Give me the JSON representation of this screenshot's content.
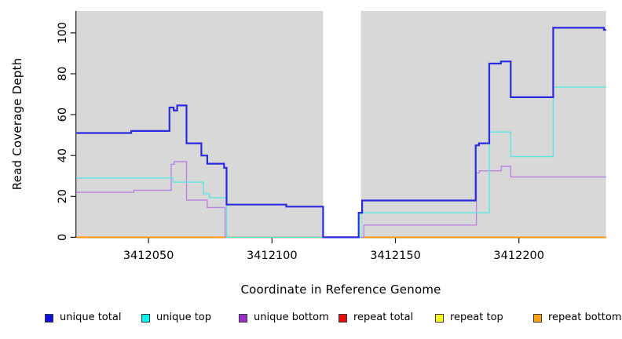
{
  "figure": {
    "xlabel": "Coordinate in Reference Genome",
    "ylabel": "Read Coverage Depth"
  },
  "chart_data": {
    "type": "line",
    "subtype": "step",
    "title": "",
    "xlabel": "Coordinate in Reference Genome",
    "ylabel": "Read Coverage Depth",
    "xlim": [
      3412020.8,
      3412235.3
    ],
    "ylim": [
      0,
      110.7
    ],
    "grid": false,
    "plot_bg": "#D8D8D8",
    "axis_color": "#1a1a1a",
    "legend_position": "bottom",
    "x_ticks": [
      {
        "value": 3412050,
        "label": "3412050"
      },
      {
        "value": 3412100,
        "label": "3412100"
      },
      {
        "value": 3412150,
        "label": "3412150"
      },
      {
        "value": 3412200,
        "label": "3412200"
      }
    ],
    "y_ticks": [
      {
        "value": 0,
        "label": "0"
      },
      {
        "value": 20,
        "label": "20"
      },
      {
        "value": 40,
        "label": "40"
      },
      {
        "value": 60,
        "label": "60"
      },
      {
        "value": 80,
        "label": "80"
      },
      {
        "value": 100,
        "label": "100"
      }
    ],
    "masked_region": {
      "x_start": 3412120.7,
      "x_end": 3412136.0,
      "color": "#FFFFFF"
    },
    "series": [
      {
        "name": "unique total",
        "legend_color": "#1111DD",
        "color": "#2A2AE0",
        "line_width": 2.2,
        "points": [
          [
            3412020.8,
            51
          ],
          [
            3412043.0,
            52
          ],
          [
            3412058.5,
            63.5
          ],
          [
            3412060.2,
            62
          ],
          [
            3412061.6,
            64.5
          ],
          [
            3412065.4,
            46
          ],
          [
            3412071.4,
            40
          ],
          [
            3412073.8,
            36
          ],
          [
            3412080.6,
            34
          ],
          [
            3412081.6,
            16
          ],
          [
            3412105.8,
            15
          ],
          [
            3412120.7,
            0
          ],
          [
            3412135.1,
            12
          ],
          [
            3412136.5,
            18
          ],
          [
            3412182.5,
            45
          ],
          [
            3412183.8,
            46
          ],
          [
            3412188.0,
            85
          ],
          [
            3412192.7,
            86
          ],
          [
            3412196.7,
            68.5
          ],
          [
            3412213.9,
            102.5
          ],
          [
            3412234.4,
            101.5
          ]
        ]
      },
      {
        "name": "unique top",
        "legend_color": "#00F5F5",
        "color": "#5CE6E0",
        "line_width": 1.4,
        "points": [
          [
            3412020.8,
            29
          ],
          [
            3412060.0,
            27
          ],
          [
            3412072.2,
            21.3
          ],
          [
            3412074.6,
            19.4
          ],
          [
            3412081.6,
            0
          ],
          [
            3412136.0,
            12
          ],
          [
            3412188.0,
            51.5
          ],
          [
            3412196.7,
            39.5
          ],
          [
            3412213.9,
            73.5
          ]
        ]
      },
      {
        "name": "unique bottom",
        "legend_color": "#9A2FCC",
        "color": "#BA86DE",
        "line_width": 1.4,
        "points": [
          [
            3412020.8,
            22
          ],
          [
            3412044.0,
            23
          ],
          [
            3412059.2,
            35.7
          ],
          [
            3412060.4,
            37
          ],
          [
            3412065.4,
            18.2
          ],
          [
            3412073.8,
            14.6
          ],
          [
            3412081.0,
            0
          ],
          [
            3412137.2,
            6
          ],
          [
            3412182.8,
            31.5
          ],
          [
            3412184.0,
            32.5
          ],
          [
            3412192.9,
            34.7
          ],
          [
            3412196.7,
            29.5
          ]
        ]
      },
      {
        "name": "repeat total",
        "legend_color": "#E30E0E",
        "color": "#E01010",
        "line_width": 1.4,
        "points": [
          [
            3412020.8,
            0
          ]
        ]
      },
      {
        "name": "repeat top",
        "legend_color": "#FAFA1E",
        "color": "#F5F500",
        "line_width": 1.4,
        "points": [
          [
            3412020.8,
            0
          ]
        ]
      },
      {
        "name": "repeat bottom",
        "legend_color": "#FFA014",
        "color": "#FF9E1E",
        "line_width": 2.0,
        "points": [
          [
            3412020.8,
            0
          ]
        ]
      }
    ],
    "draw_order": [
      3,
      4,
      5,
      2,
      1,
      0
    ]
  }
}
